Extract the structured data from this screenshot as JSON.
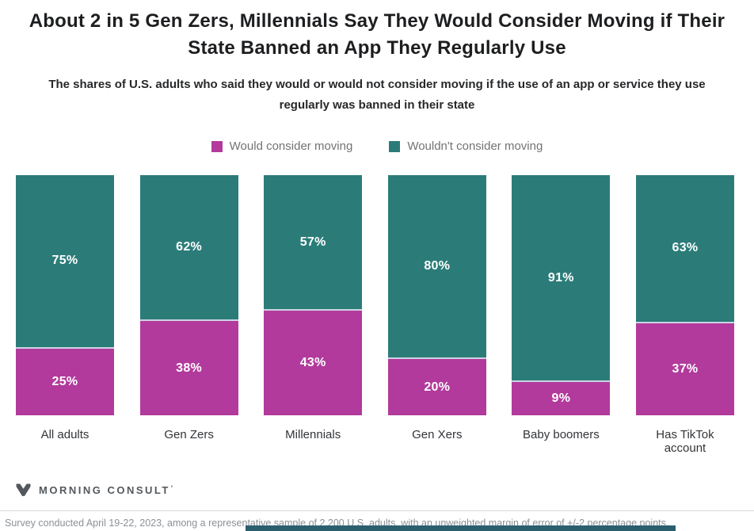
{
  "header": {
    "title": "About 2 in 5 Gen Zers, Millennials Say They Would Consider Moving if Their\nState Banned an App They Regularly Use",
    "subtitle": "The shares of U.S. adults who said they would or would not consider moving if the use of an app or service they use\nregularly was banned in their state"
  },
  "legend": [
    {
      "label": "Would consider moving",
      "color": "#b23a9c"
    },
    {
      "label": "Wouldn't consider moving",
      "color": "#2b7c79"
    }
  ],
  "chart_data": {
    "type": "bar",
    "stacked": true,
    "categories": [
      "All adults",
      "Gen Zers",
      "Millennials",
      "Gen Xers",
      "Baby boomers",
      "Has TikTok account"
    ],
    "series": [
      {
        "name": "Would consider moving",
        "color": "#b23a9c",
        "position": "bottom",
        "values": [
          25,
          38,
          43,
          20,
          9,
          37
        ]
      },
      {
        "name": "Wouldn't consider moving",
        "color": "#2b7c79",
        "position": "top",
        "values": [
          75,
          62,
          57,
          80,
          91,
          63
        ]
      }
    ],
    "value_suffix": "%",
    "value_label_color": "#ffffff",
    "segment_separator_color": "#ccd3e3",
    "ylim": [
      0,
      100
    ],
    "grid": false,
    "legend_position": "top-center"
  },
  "footer": {
    "brand": "MORNING CONSULT",
    "brand_mark": "'",
    "note": "Survey conducted April 19-22, 2023, among a representative sample of 2,200 U.S. adults, with an unweighted margin of error of +/-2 percentage points.",
    "accent_bar_color": "#2b5f6e"
  }
}
